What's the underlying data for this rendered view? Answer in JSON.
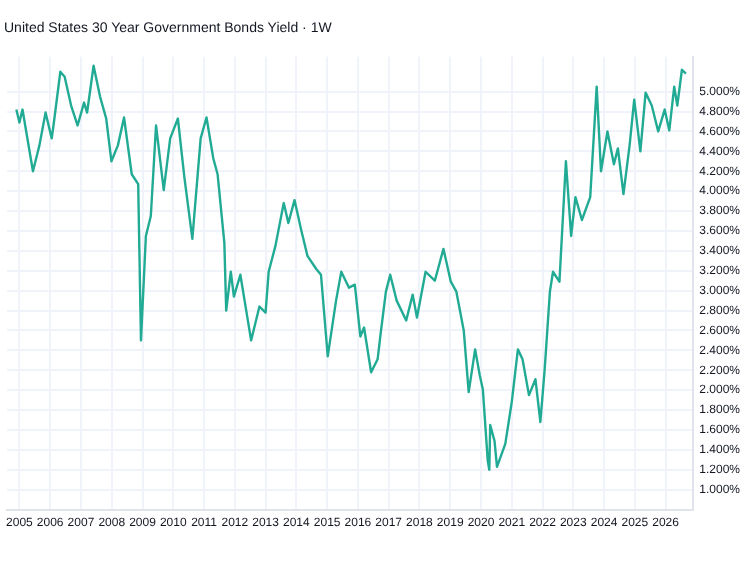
{
  "chart_data": {
    "type": "line",
    "title": "United States 30 Year Government Bonds Yield · 1W",
    "x": [
      2004.9,
      2005.0,
      2005.1,
      2005.44,
      2005.65,
      2005.85,
      2006.05,
      2006.12,
      2006.33,
      2006.47,
      2006.68,
      2006.89,
      2007.1,
      2007.2,
      2007.41,
      2007.62,
      2007.82,
      2007.99,
      2008.2,
      2008.4,
      2008.65,
      2008.86,
      2008.95,
      2009.11,
      2009.27,
      2009.44,
      2009.69,
      2009.9,
      2010.15,
      2010.36,
      2010.62,
      2010.89,
      2011.08,
      2011.3,
      2011.44,
      2011.66,
      2011.72,
      2011.87,
      2011.97,
      2012.18,
      2012.53,
      2012.8,
      2013.0,
      2013.1,
      2013.32,
      2013.59,
      2013.74,
      2013.94,
      2014.15,
      2014.36,
      2014.64,
      2014.8,
      2015.02,
      2015.29,
      2015.46,
      2015.71,
      2015.9,
      2016.08,
      2016.2,
      2016.43,
      2016.64,
      2016.74,
      2016.91,
      2017.05,
      2017.26,
      2017.57,
      2017.78,
      2017.92,
      2018.2,
      2018.5,
      2018.78,
      2019.02,
      2019.2,
      2019.44,
      2019.6,
      2019.81,
      2019.96,
      2020.06,
      2020.22,
      2020.27,
      2020.3,
      2020.44,
      2020.52,
      2020.79,
      2021.0,
      2021.2,
      2021.35,
      2021.56,
      2021.77,
      2021.93,
      2022.07,
      2022.24,
      2022.34,
      2022.55,
      2022.76,
      2022.93,
      2023.07,
      2023.28,
      2023.55,
      2023.76,
      2023.9,
      2024.11,
      2024.32,
      2024.45,
      2024.63,
      2024.83,
      2024.98,
      2025.18,
      2025.35,
      2025.55,
      2025.76,
      2025.97,
      2026.12,
      2026.28,
      2026.38,
      2026.53,
      2026.66
    ],
    "series": [
      {
        "color": "#22ab94",
        "values": [
          4.82,
          4.69,
          4.82,
          4.2,
          4.46,
          4.79,
          4.53,
          4.69,
          5.2,
          5.15,
          4.86,
          4.66,
          4.89,
          4.79,
          5.26,
          4.95,
          4.73,
          4.3,
          4.46,
          4.74,
          4.17,
          4.07,
          2.5,
          3.55,
          3.75,
          4.66,
          4.01,
          4.53,
          4.73,
          4.14,
          3.52,
          4.53,
          4.74,
          4.33,
          4.17,
          3.48,
          2.8,
          3.19,
          2.94,
          3.16,
          2.5,
          2.84,
          2.78,
          3.19,
          3.45,
          3.88,
          3.68,
          3.91,
          3.62,
          3.35,
          3.22,
          3.16,
          2.34,
          2.9,
          3.19,
          3.03,
          3.06,
          2.54,
          2.63,
          2.18,
          2.31,
          2.57,
          2.99,
          3.16,
          2.9,
          2.7,
          2.96,
          2.73,
          3.19,
          3.1,
          3.42,
          3.09,
          2.99,
          2.6,
          1.98,
          2.41,
          2.15,
          2.01,
          1.29,
          1.2,
          1.65,
          1.49,
          1.23,
          1.46,
          1.88,
          2.41,
          2.31,
          1.95,
          2.11,
          1.68,
          2.21,
          2.99,
          3.19,
          3.09,
          4.3,
          3.55,
          3.94,
          3.71,
          3.94,
          5.05,
          4.2,
          4.6,
          4.27,
          4.43,
          3.97,
          4.46,
          4.92,
          4.4,
          4.99,
          4.86,
          4.6,
          4.82,
          4.61,
          5.05,
          4.86,
          5.22,
          5.18
        ]
      }
    ],
    "xlim": [
      2004.6,
      2026.9
    ],
    "xticks": [
      2005,
      2006,
      2007,
      2008,
      2009,
      2010,
      2011,
      2012,
      2013,
      2014,
      2015,
      2016,
      2017,
      2018,
      2019,
      2020,
      2021,
      2022,
      2023,
      2024,
      2025,
      2026
    ],
    "ylim": [
      0.8,
      5.35
    ],
    "yticks": [
      {
        "value": 1,
        "label": "1.000%"
      },
      {
        "value": 1.2,
        "label": "1.200%"
      },
      {
        "value": 1.4,
        "label": "1.400%"
      },
      {
        "value": 1.6,
        "label": "1.600%"
      },
      {
        "value": 1.8,
        "label": "1.800%"
      },
      {
        "value": 2,
        "label": "2.000%"
      },
      {
        "value": 2.2,
        "label": "2.200%"
      },
      {
        "value": 2.4,
        "label": "2.400%"
      },
      {
        "value": 2.6,
        "label": "2.600%"
      },
      {
        "value": 2.8,
        "label": "2.800%"
      },
      {
        "value": 3,
        "label": "3.000%"
      },
      {
        "value": 3.2,
        "label": "3.200%"
      },
      {
        "value": 3.4,
        "label": "3.400%"
      },
      {
        "value": 3.6,
        "label": "3.600%"
      },
      {
        "value": 3.8,
        "label": "3.800%"
      },
      {
        "value": 4,
        "label": "4.000%"
      },
      {
        "value": 4.2,
        "label": "4.200%"
      },
      {
        "value": 4.4,
        "label": "4.400%"
      },
      {
        "value": 4.6,
        "label": "4.600%"
      },
      {
        "value": 4.8,
        "label": "4.800%"
      },
      {
        "value": 5,
        "label": "5.000%"
      }
    ],
    "grid": true,
    "marker": "none",
    "line_style": "solid"
  }
}
